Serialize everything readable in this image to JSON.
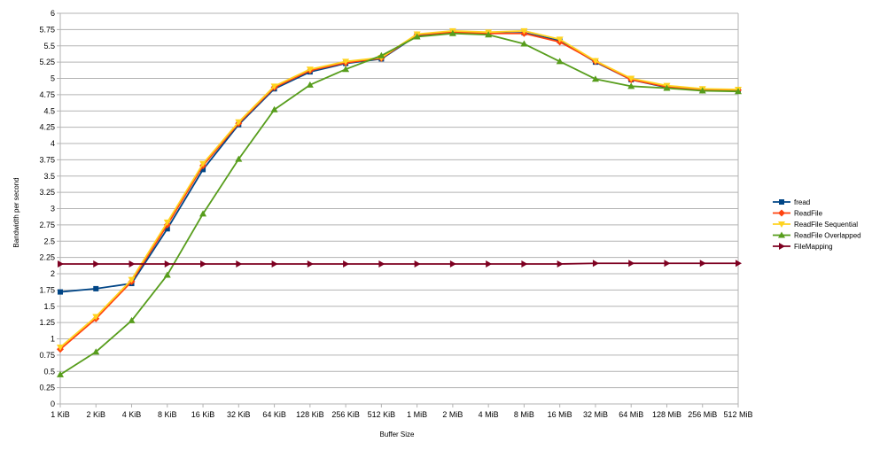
{
  "chart_data": {
    "type": "line",
    "title": "",
    "xlabel": "Buffer Size",
    "ylabel": "Bandwidth per second",
    "categories": [
      "1 KiB",
      "2 KiB",
      "4 KiB",
      "8 KiB",
      "16 KiB",
      "32 KiB",
      "64 KiB",
      "128 KiB",
      "256 KiB",
      "512 KiB",
      "1 MiB",
      "2 MiB",
      "4 MiB",
      "8 MiB",
      "16 MiB",
      "32 MiB",
      "64 MiB",
      "128 MiB",
      "256 MiB",
      "512 MiB"
    ],
    "yticks": [
      "0",
      "0.25",
      "0.5",
      "0.75",
      "1",
      "1.25",
      "1.5",
      "1.75",
      "2",
      "2.25",
      "2.5",
      "2.75",
      "3",
      "3.25",
      "3.5",
      "3.75",
      "4",
      "4.25",
      "4.5",
      "4.75",
      "5",
      "5.25",
      "5.5",
      "5.75",
      "6"
    ],
    "ylim": [
      0,
      6
    ],
    "grid": true,
    "legend_position": "right",
    "series": [
      {
        "name": "fread",
        "color": "#004586",
        "marker": "square",
        "values": [
          1.72,
          1.77,
          1.85,
          2.69,
          3.6,
          4.29,
          4.84,
          5.1,
          5.23,
          5.3,
          5.66,
          5.7,
          5.69,
          5.7,
          5.58,
          5.25,
          4.98,
          4.86,
          4.82,
          4.81
        ]
      },
      {
        "name": "ReadFile",
        "color": "#FF420E",
        "marker": "diamond",
        "values": [
          0.84,
          1.31,
          1.88,
          2.75,
          3.66,
          4.31,
          4.86,
          5.12,
          5.24,
          5.31,
          5.67,
          5.71,
          5.69,
          5.69,
          5.56,
          5.26,
          4.98,
          4.87,
          4.82,
          4.82
        ]
      },
      {
        "name": "ReadFile Sequential",
        "color": "#FFD320",
        "marker": "triangle-down",
        "values": [
          0.87,
          1.34,
          1.91,
          2.79,
          3.69,
          4.33,
          4.88,
          5.14,
          5.26,
          5.32,
          5.68,
          5.73,
          5.71,
          5.73,
          5.6,
          5.27,
          5.0,
          4.89,
          4.84,
          4.83
        ]
      },
      {
        "name": "ReadFile Overlapped",
        "color": "#579D1C",
        "marker": "triangle-up",
        "values": [
          0.45,
          0.8,
          1.28,
          1.98,
          2.92,
          3.76,
          4.52,
          4.9,
          5.14,
          5.35,
          5.64,
          5.69,
          5.67,
          5.53,
          5.26,
          4.99,
          4.88,
          4.85,
          4.81,
          4.8
        ]
      },
      {
        "name": "FileMapping",
        "color": "#7E0021",
        "marker": "triangle-right",
        "values": [
          2.15,
          2.15,
          2.15,
          2.15,
          2.15,
          2.15,
          2.15,
          2.15,
          2.15,
          2.15,
          2.15,
          2.15,
          2.15,
          2.15,
          2.15,
          2.16,
          2.16,
          2.16,
          2.16,
          2.16
        ]
      }
    ]
  }
}
